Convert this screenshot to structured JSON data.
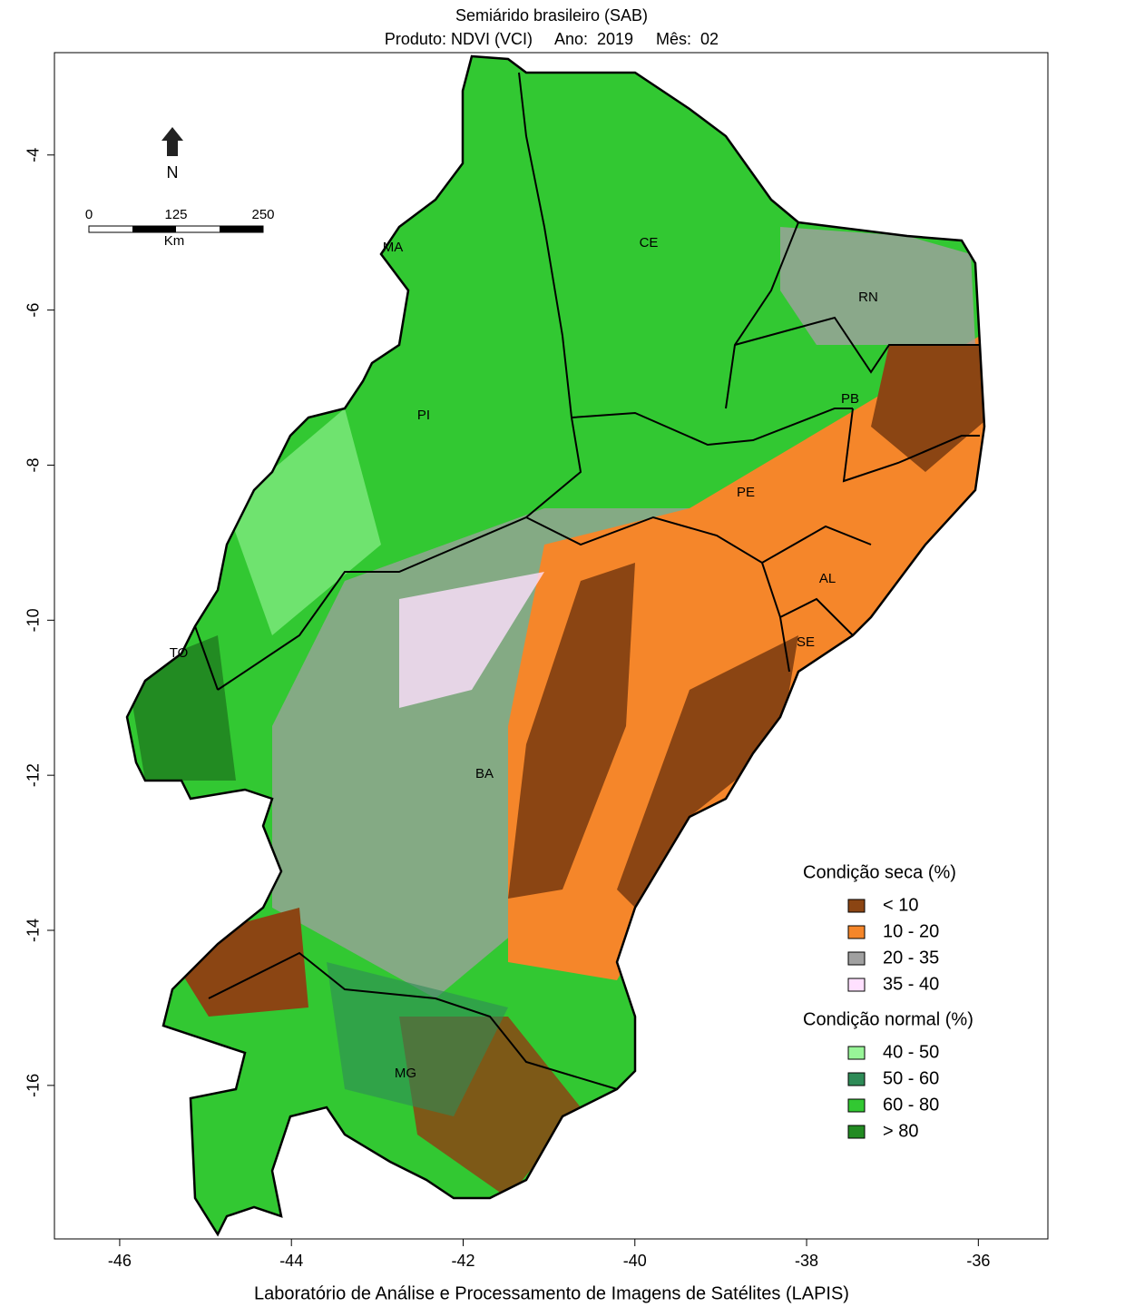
{
  "header": {
    "title": "Semiárido brasileiro (SAB)",
    "subtitle": "Produto: NDVI (VCI)     Ano:  2019     Mês:  02"
  },
  "map": {
    "xlim": [
      -46.76,
      -35.19
    ],
    "ylim": [
      -17.98,
      -2.68
    ],
    "xticks": [
      -46,
      -44,
      -42,
      -40,
      -38,
      -36
    ],
    "yticks": [
      -4,
      -6,
      -8,
      -10,
      -12,
      -14,
      -16
    ],
    "north_label": "N",
    "scale_bar": {
      "ticks": [
        0,
        125,
        250
      ],
      "unit": "Km"
    },
    "state_labels": [
      "MA",
      "CE",
      "RN",
      "PI",
      "PB",
      "PE",
      "AL",
      "SE",
      "TO",
      "BA",
      "MG"
    ]
  },
  "legend": {
    "groups": [
      {
        "title": "Condição seca (%)",
        "items": [
          {
            "label": "< 10",
            "color": "#8b4513"
          },
          {
            "label": "10 - 20",
            "color": "#f5862a"
          },
          {
            "label": "20 - 35",
            "color": "#a0a0a0"
          },
          {
            "label": "35 - 40",
            "color": "#ffe0ff"
          }
        ]
      },
      {
        "title": "Condição normal (%)",
        "items": [
          {
            "label": "40 - 50",
            "color": "#98f598"
          },
          {
            "label": "50 - 60",
            "color": "#2e8b57"
          },
          {
            "label": "60 - 80",
            "color": "#32c832"
          },
          {
            "label": "> 80",
            "color": "#228b22"
          }
        ]
      }
    ]
  },
  "footer": "Laboratório de Análise e Processamento de Imagens de Satélites (LAPIS)"
}
